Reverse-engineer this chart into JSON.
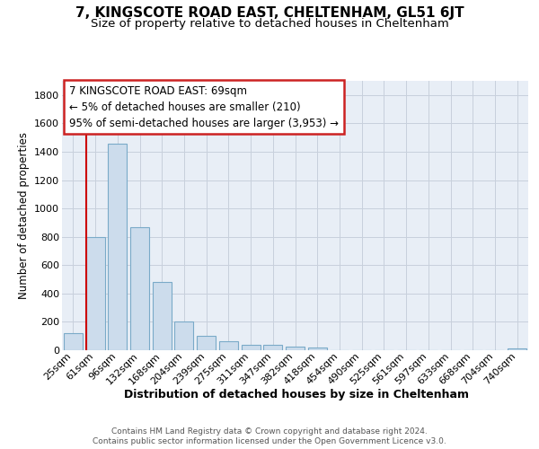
{
  "title1": "7, KINGSCOTE ROAD EAST, CHELTENHAM, GL51 6JT",
  "title2": "Size of property relative to detached houses in Cheltenham",
  "xlabel": "Distribution of detached houses by size in Cheltenham",
  "ylabel": "Number of detached properties",
  "categories": [
    "25sqm",
    "61sqm",
    "96sqm",
    "132sqm",
    "168sqm",
    "204sqm",
    "239sqm",
    "275sqm",
    "311sqm",
    "347sqm",
    "382sqm",
    "418sqm",
    "454sqm",
    "490sqm",
    "525sqm",
    "561sqm",
    "597sqm",
    "633sqm",
    "668sqm",
    "704sqm",
    "740sqm"
  ],
  "values": [
    120,
    800,
    1455,
    865,
    480,
    200,
    100,
    65,
    40,
    35,
    25,
    20,
    0,
    0,
    0,
    0,
    0,
    0,
    0,
    0,
    15
  ],
  "bar_color": "#ccdcec",
  "bar_edge_color": "#7aaac8",
  "annotation_line1": "7 KINGSCOTE ROAD EAST: 69sqm",
  "annotation_line2": "← 5% of detached houses are smaller (210)",
  "annotation_line3": "95% of semi-detached houses are larger (3,953) →",
  "annotation_box_edge_color": "#cc2222",
  "vline_index": 1,
  "ylim": [
    0,
    1900
  ],
  "yticks": [
    0,
    200,
    400,
    600,
    800,
    1000,
    1200,
    1400,
    1600,
    1800
  ],
  "grid_color": "#c8d0dc",
  "plot_bg_color": "#e8eef6",
  "title1_fontsize": 11,
  "title2_fontsize": 9.5,
  "ylabel_fontsize": 8.5,
  "xlabel_fontsize": 9,
  "tick_fontsize": 8,
  "annot_fontsize": 8.5,
  "footnote_fontsize": 6.5,
  "footnote1": "Contains HM Land Registry data © Crown copyright and database right 2024.",
  "footnote2": "Contains public sector information licensed under the Open Government Licence v3.0."
}
